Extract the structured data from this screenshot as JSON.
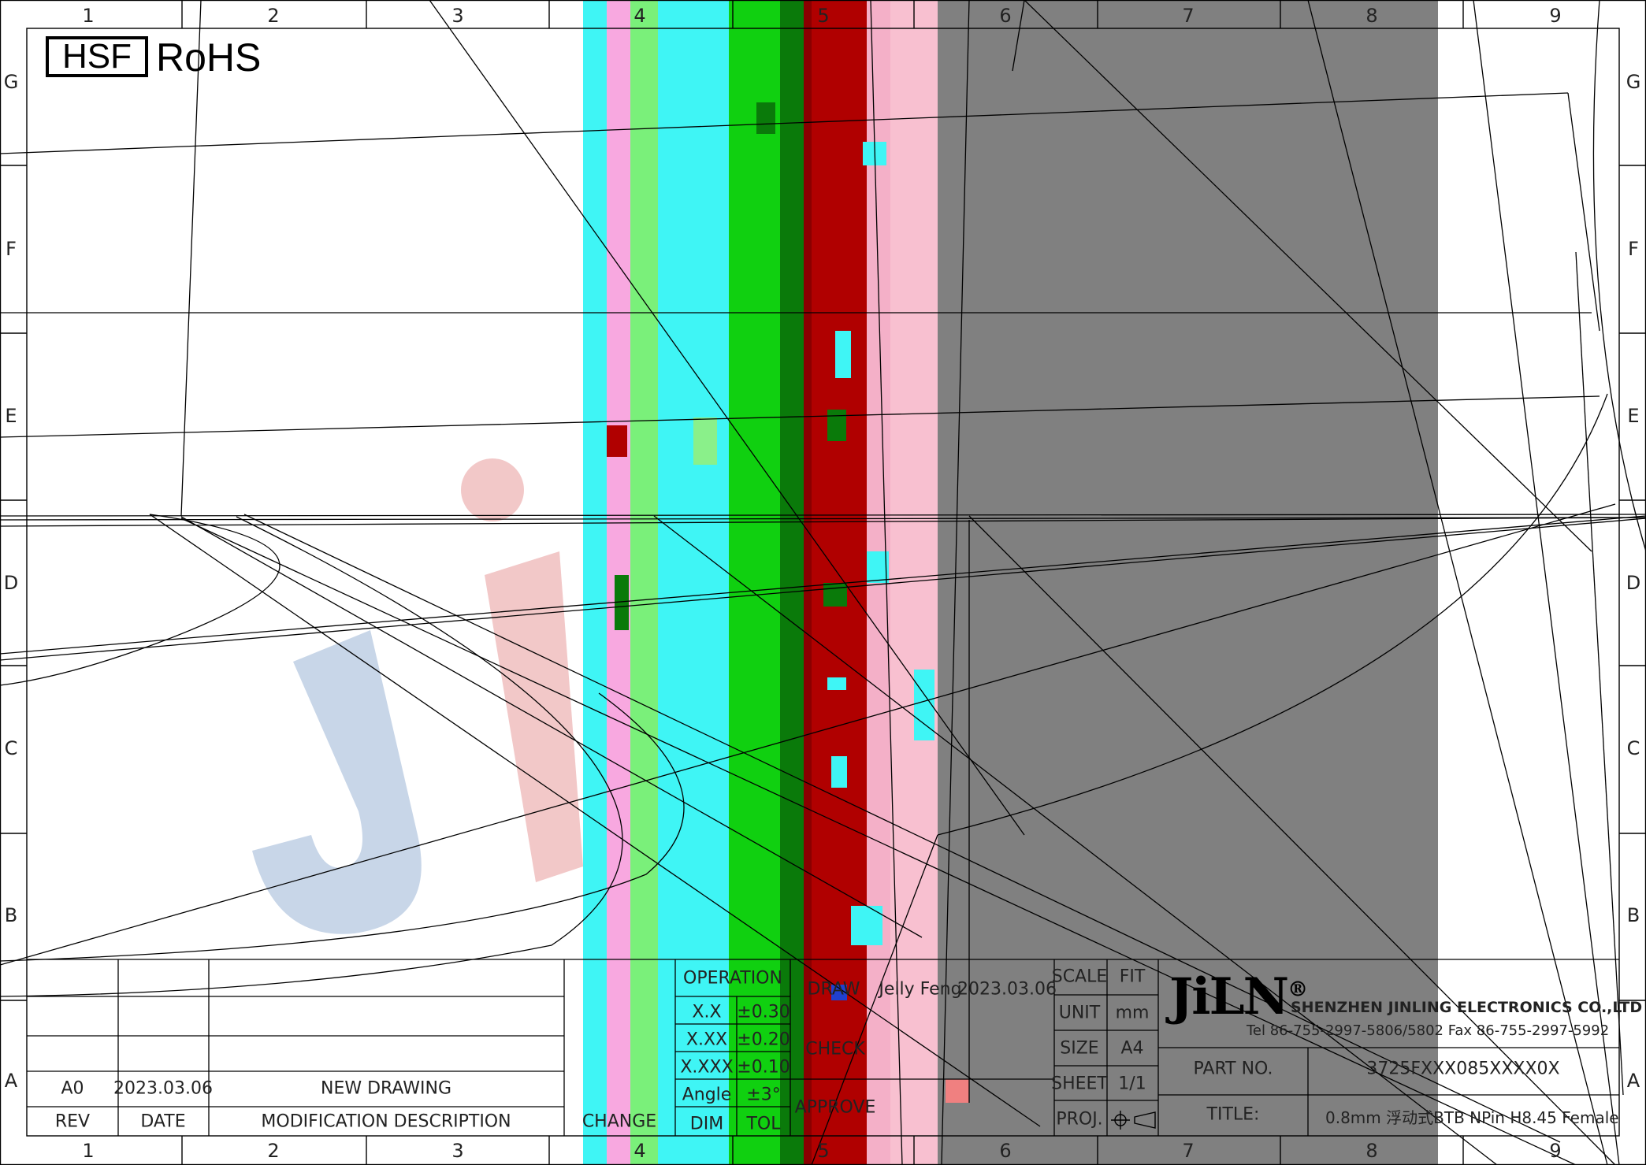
{
  "col_numbers": [
    "1",
    "2",
    "3",
    "4",
    "5",
    "6",
    "7",
    "8",
    "9"
  ],
  "row_letters": [
    "G",
    "F",
    "E",
    "D",
    "C",
    "B",
    "A"
  ],
  "logo": {
    "hsf": "HSF",
    "rohs": "RoHS"
  },
  "revision_block": {
    "rev_value": "A0",
    "date_value": "2023.03.06",
    "description_value": "NEW DRAWING",
    "rev_header": "REV",
    "date_header": "DATE",
    "description_header": "MODIFICATION DESCRIPTION",
    "change_header": "CHANGE"
  },
  "tolerance_block": {
    "operation": "OPERATION",
    "rows": [
      {
        "label": "X.X",
        "value": "±0.30"
      },
      {
        "label": "X.XX",
        "value": "±0.20"
      },
      {
        "label": "X.XXX",
        "value": "±0.10"
      },
      {
        "label": "Angle",
        "value": "±3°"
      }
    ],
    "dim": "DIM",
    "tol": "TOL"
  },
  "approval_block": {
    "draw_label": "DRAW",
    "draw_name": "Jelly  Feng",
    "draw_date": "2023.03.06",
    "check_label": "CHECK",
    "approve_label": "APPROVE"
  },
  "info_block": {
    "scale_label": "SCALE",
    "scale_value": "FIT",
    "unit_label": "UNIT",
    "unit_value": "mm",
    "size_label": "SIZE",
    "size_value": "A4",
    "sheet_label": "SHEET",
    "sheet_value": "1/1",
    "proj_label": "PROJ."
  },
  "company": {
    "brand": "JiLN",
    "brand_mark": "®",
    "name": "SHENZHEN JINLING ELECTRONICS CO.,LTD",
    "contact": "Tel   86-755-2997-5806/5802   Fax   86-755-2997-5992"
  },
  "part": {
    "part_label": "PART  NO.",
    "part_value": "3725FXXX085XXXX0X",
    "title_label": "TITLE:",
    "title_value": "0.8mm  浮动式BTB  NPin  H8.45  Female"
  },
  "colors": {
    "magenta_light": "#f8a8e0",
    "cyan": "#3ff5f5",
    "green": "#10d010",
    "dark_green": "#0a7a0a",
    "red": "#b00000",
    "pink": "#f4b0c8",
    "gray": "#808080",
    "watermark_blue": "#c8d6e8",
    "watermark_red": "#f2c8c8"
  }
}
